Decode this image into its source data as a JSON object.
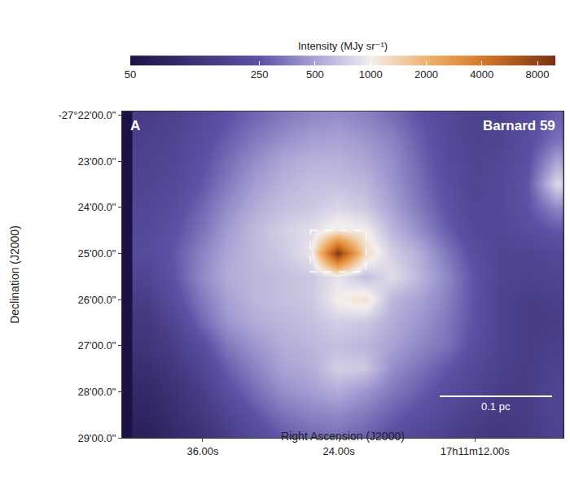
{
  "chart_data": {
    "type": "heatmap",
    "title": "Barnard 59",
    "panel_label": "A",
    "xlabel": "Right Ascension (J2000)",
    "ylabel": "Declination (J2000)",
    "grid": false,
    "x": [
      41.0,
      38.6,
      36.2,
      33.8,
      31.4,
      29.0,
      26.5,
      24.1,
      21.7,
      19.3,
      16.9,
      14.5,
      12.1,
      9.7,
      7.3,
      4.9
    ],
    "y": [
      22.0,
      22.5,
      23.0,
      23.5,
      24.0,
      24.5,
      25.0,
      25.5,
      26.0,
      26.5,
      27.0,
      27.5,
      28.0,
      28.5,
      29.0
    ],
    "z": [
      [
        150,
        170,
        200,
        250,
        300,
        350,
        400,
        420,
        380,
        320,
        250,
        200,
        170,
        180,
        220,
        280
      ],
      [
        160,
        180,
        220,
        280,
        350,
        420,
        480,
        500,
        450,
        380,
        280,
        210,
        170,
        180,
        230,
        320
      ],
      [
        170,
        190,
        240,
        320,
        420,
        520,
        580,
        580,
        520,
        420,
        300,
        220,
        180,
        190,
        240,
        500
      ],
      [
        180,
        200,
        260,
        360,
        480,
        580,
        650,
        650,
        600,
        450,
        320,
        230,
        180,
        200,
        260,
        800
      ],
      [
        190,
        220,
        300,
        420,
        550,
        650,
        700,
        800,
        700,
        500,
        350,
        250,
        190,
        200,
        250,
        400
      ],
      [
        200,
        240,
        330,
        480,
        620,
        750,
        850,
        1100,
        1000,
        600,
        420,
        280,
        200,
        190,
        220,
        260
      ],
      [
        210,
        260,
        380,
        520,
        620,
        700,
        900,
        9000,
        1300,
        750,
        550,
        350,
        230,
        180,
        180,
        200
      ],
      [
        180,
        250,
        400,
        550,
        600,
        650,
        700,
        900,
        650,
        850,
        600,
        400,
        250,
        180,
        170,
        180
      ],
      [
        150,
        220,
        350,
        500,
        600,
        650,
        700,
        1000,
        1200,
        600,
        500,
        380,
        250,
        170,
        150,
        160
      ],
      [
        130,
        180,
        300,
        450,
        550,
        600,
        650,
        750,
        700,
        550,
        450,
        350,
        250,
        170,
        150,
        150
      ],
      [
        120,
        150,
        220,
        350,
        450,
        550,
        600,
        650,
        600,
        500,
        400,
        330,
        230,
        170,
        150,
        160
      ],
      [
        100,
        130,
        180,
        280,
        380,
        500,
        550,
        750,
        700,
        420,
        330,
        260,
        200,
        160,
        150,
        170
      ],
      [
        90,
        110,
        150,
        230,
        320,
        420,
        480,
        550,
        450,
        350,
        280,
        220,
        180,
        150,
        150,
        180
      ],
      [
        80,
        100,
        130,
        180,
        250,
        330,
        380,
        400,
        350,
        280,
        230,
        190,
        160,
        140,
        150,
        180
      ],
      [
        70,
        90,
        110,
        150,
        200,
        260,
        300,
        320,
        280,
        230,
        190,
        160,
        140,
        130,
        140,
        170
      ]
    ],
    "xlim": [
      43.1,
      4.2
    ],
    "ylim": [
      29.0,
      21.92
    ],
    "xticks": [
      {
        "value": 36,
        "label": "36.00s"
      },
      {
        "value": 24,
        "label": "24.00s"
      },
      {
        "value": 12,
        "label": "17h11m12.00s"
      }
    ],
    "yticks": [
      {
        "value": 22,
        "label": "-27°22'00.0\""
      },
      {
        "value": 23,
        "label": "23'00.0\""
      },
      {
        "value": 24,
        "label": "24'00.0\""
      },
      {
        "value": 25,
        "label": "25'00.0\""
      },
      {
        "value": 26,
        "label": "26'00.0\""
      },
      {
        "value": 27,
        "label": "27'00.0\""
      },
      {
        "value": 28,
        "label": "28'00.0\""
      },
      {
        "value": 29,
        "label": "29'00.0\""
      }
    ],
    "colorbar": {
      "title": "Intensity (MJy sr⁻¹)",
      "log": true,
      "range": [
        50,
        10000
      ],
      "ticks": [
        50,
        250,
        500,
        1000,
        2000,
        4000,
        8000
      ]
    },
    "box": {
      "x": [
        26.5,
        21.6
      ],
      "y": [
        24.5,
        25.4
      ]
    },
    "scalebar": {
      "label": "0.1 pc",
      "x": [
        15.1,
        5.2
      ],
      "y": 28.1
    }
  }
}
